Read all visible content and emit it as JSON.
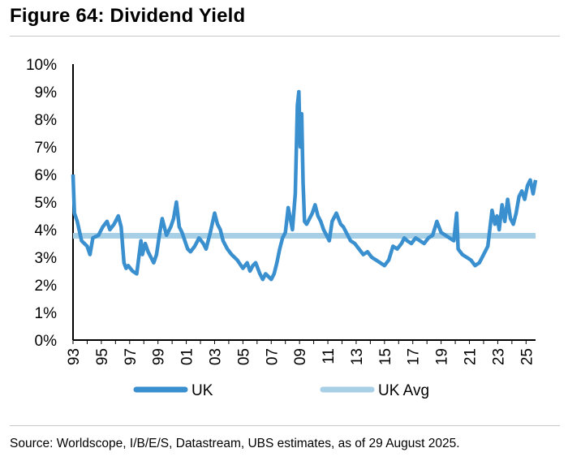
{
  "title": "Figure 64: Dividend Yield",
  "source": "Source: Worldscope, I/B/E/S, Datastream, UBS estimates, as of 29 August 2025.",
  "colors": {
    "uk": "#3a8fcf",
    "uk_avg": "#a7cfe6",
    "axis": "#000000"
  },
  "chart_data": {
    "type": "line",
    "title": "Figure 64: Dividend Yield",
    "xlabel": "",
    "ylabel": "",
    "ylim": [
      0,
      10
    ],
    "xlim": [
      1993,
      2025.67
    ],
    "y_tick_labels": [
      "0%",
      "1%",
      "2%",
      "3%",
      "4%",
      "5%",
      "6%",
      "7%",
      "8%",
      "9%",
      "10%"
    ],
    "x_tick_labels": [
      "93",
      "95",
      "97",
      "99",
      "01",
      "03",
      "05",
      "07",
      "09",
      "11",
      "13",
      "15",
      "17",
      "19",
      "21",
      "23",
      "25"
    ],
    "legend": [
      "UK",
      "UK Avg"
    ],
    "legend_position": "bottom",
    "series": [
      {
        "name": "UK",
        "x": [
          1993.0,
          1993.1,
          1993.3,
          1993.6,
          1994.0,
          1994.2,
          1994.4,
          1994.8,
          1995.1,
          1995.4,
          1995.6,
          1995.9,
          1996.2,
          1996.4,
          1996.6,
          1996.75,
          1996.9,
          1997.2,
          1997.5,
          1997.8,
          1997.9,
          1998.1,
          1998.3,
          1998.5,
          1998.7,
          1998.9,
          1999.1,
          1999.3,
          1999.6,
          1999.9,
          2000.1,
          2000.3,
          2000.5,
          2000.7,
          2000.9,
          2001.1,
          2001.3,
          2001.6,
          2001.9,
          2002.2,
          2002.4,
          2002.7,
          2003.0,
          2003.2,
          2003.4,
          2003.6,
          2003.9,
          2004.2,
          2004.6,
          2005.0,
          2005.3,
          2005.5,
          2005.7,
          2005.9,
          2006.2,
          2006.4,
          2006.6,
          2006.8,
          2007.0,
          2007.2,
          2007.4,
          2007.6,
          2007.8,
          2008.0,
          2008.2,
          2008.5,
          2008.7,
          2008.85,
          2008.95,
          2009.05,
          2009.15,
          2009.25,
          2009.35,
          2009.5,
          2009.7,
          2009.9,
          2010.1,
          2010.3,
          2010.5,
          2010.7,
          2010.9,
          2011.1,
          2011.3,
          2011.6,
          2011.9,
          2012.1,
          2012.3,
          2012.6,
          2012.9,
          2013.2,
          2013.5,
          2013.8,
          2014.1,
          2014.4,
          2014.7,
          2015.0,
          2015.3,
          2015.6,
          2015.9,
          2016.2,
          2016.4,
          2016.6,
          2016.9,
          2017.2,
          2017.5,
          2017.8,
          2018.1,
          2018.4,
          2018.7,
          2019.0,
          2019.3,
          2019.6,
          2019.9,
          2020.1,
          2020.2,
          2020.35,
          2020.5,
          2020.8,
          2021.1,
          2021.4,
          2021.7,
          2022.0,
          2022.3,
          2022.6,
          2022.8,
          2022.95,
          2023.1,
          2023.3,
          2023.5,
          2023.7,
          2023.9,
          2024.1,
          2024.3,
          2024.5,
          2024.7,
          2024.9,
          2025.1,
          2025.3,
          2025.5,
          2025.67
        ],
        "values": [
          6.0,
          4.6,
          4.3,
          3.6,
          3.4,
          3.1,
          3.7,
          3.8,
          4.1,
          4.3,
          4.0,
          4.2,
          4.5,
          4.1,
          2.8,
          2.6,
          2.7,
          2.5,
          2.4,
          3.6,
          3.1,
          3.5,
          3.2,
          3.0,
          2.8,
          3.1,
          3.8,
          4.4,
          3.8,
          4.1,
          4.4,
          5.0,
          4.1,
          3.9,
          3.6,
          3.3,
          3.2,
          3.4,
          3.7,
          3.5,
          3.3,
          3.9,
          4.6,
          4.2,
          4.0,
          3.6,
          3.3,
          3.1,
          2.9,
          2.6,
          2.8,
          2.5,
          2.7,
          2.8,
          2.4,
          2.2,
          2.4,
          2.3,
          2.2,
          2.4,
          2.8,
          3.3,
          3.7,
          3.9,
          4.8,
          4.0,
          5.3,
          8.5,
          9.0,
          7.0,
          8.2,
          5.7,
          4.3,
          4.2,
          4.4,
          4.6,
          4.9,
          4.5,
          4.3,
          4.0,
          3.8,
          3.6,
          4.3,
          4.6,
          4.2,
          4.1,
          3.9,
          3.6,
          3.5,
          3.3,
          3.1,
          3.2,
          3.0,
          2.9,
          2.8,
          2.7,
          2.9,
          3.4,
          3.3,
          3.5,
          3.7,
          3.6,
          3.5,
          3.7,
          3.6,
          3.5,
          3.7,
          3.8,
          4.3,
          3.9,
          3.8,
          3.7,
          3.6,
          4.6,
          3.3,
          3.2,
          3.1,
          3.0,
          2.9,
          2.7,
          2.8,
          3.1,
          3.4,
          4.7,
          4.2,
          4.5,
          4.0,
          4.9,
          4.3,
          5.1,
          4.4,
          4.2,
          4.6,
          5.2,
          5.4,
          5.1,
          5.6,
          5.8,
          5.3,
          5.8
        ]
      },
      {
        "name": "UK Avg",
        "x": [
          1993.0,
          2025.67
        ],
        "values": [
          3.78,
          3.78
        ]
      }
    ]
  }
}
